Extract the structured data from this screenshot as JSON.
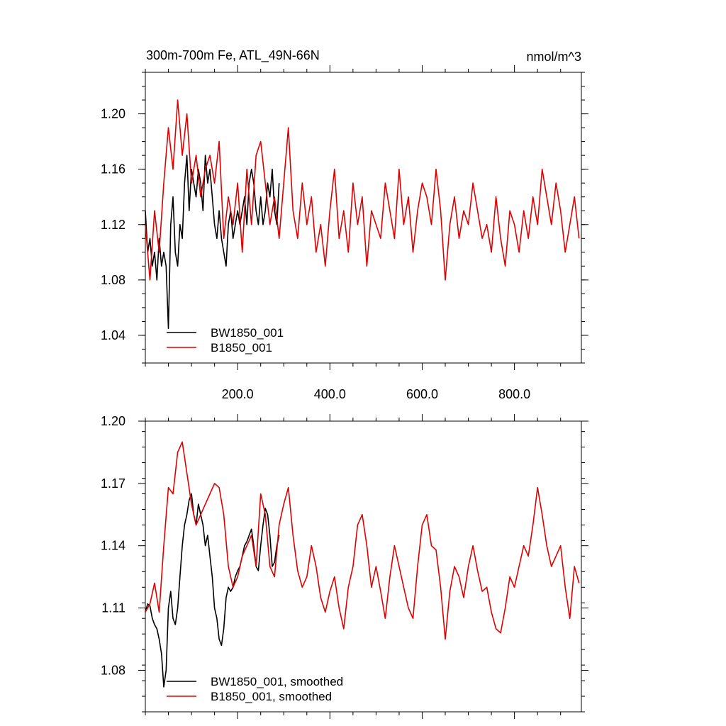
{
  "chart_data": [
    {
      "type": "line",
      "title": "300m-700m Fe, ATL_49N-66N",
      "units": "nmol/m^3",
      "xlim": [
        0,
        945
      ],
      "ylim": [
        1.02,
        1.23
      ],
      "xticks": [
        200,
        400,
        600,
        800
      ],
      "xtick_labels": [
        "200.0",
        "400.0",
        "600.0",
        "800.0"
      ],
      "yticks": [
        1.04,
        1.08,
        1.12,
        1.16,
        1.2
      ],
      "ytick_labels": [
        "1.04",
        "1.08",
        "1.12",
        "1.16",
        "1.20"
      ],
      "legend_position": "bottom-left",
      "series": [
        {
          "name": "BW1850_001",
          "color": "#000000",
          "x": [
            0,
            5,
            10,
            15,
            20,
            25,
            30,
            35,
            40,
            45,
            50,
            55,
            60,
            65,
            70,
            75,
            80,
            85,
            90,
            95,
            100,
            105,
            110,
            115,
            120,
            125,
            130,
            135,
            140,
            145,
            150,
            155,
            160,
            165,
            170,
            175,
            180,
            185,
            190,
            195,
            200,
            205,
            210,
            215,
            220,
            225,
            230,
            235,
            240,
            245,
            250,
            255,
            260,
            265,
            270,
            275,
            280,
            285,
            290
          ],
          "y": [
            1.13,
            1.1,
            1.11,
            1.09,
            1.1,
            1.08,
            1.11,
            1.09,
            1.1,
            1.09,
            1.045,
            1.12,
            1.14,
            1.1,
            1.09,
            1.12,
            1.11,
            1.15,
            1.17,
            1.13,
            1.16,
            1.15,
            1.14,
            1.16,
            1.15,
            1.13,
            1.17,
            1.15,
            1.16,
            1.14,
            1.12,
            1.11,
            1.13,
            1.11,
            1.1,
            1.09,
            1.12,
            1.13,
            1.11,
            1.12,
            1.13,
            1.12,
            1.13,
            1.14,
            1.12,
            1.15,
            1.16,
            1.15,
            1.13,
            1.12,
            1.14,
            1.12,
            1.13,
            1.15,
            1.14,
            1.16,
            1.13,
            1.12,
            1.15
          ]
        },
        {
          "name": "B1850_001",
          "color": "#e00000",
          "x": [
            0,
            10,
            20,
            30,
            40,
            50,
            60,
            70,
            80,
            90,
            100,
            110,
            120,
            130,
            140,
            150,
            160,
            170,
            180,
            190,
            200,
            210,
            220,
            230,
            240,
            250,
            260,
            270,
            280,
            290,
            300,
            310,
            320,
            330,
            340,
            350,
            360,
            370,
            380,
            390,
            400,
            410,
            420,
            430,
            440,
            450,
            460,
            470,
            480,
            490,
            500,
            510,
            520,
            530,
            540,
            550,
            560,
            570,
            580,
            590,
            600,
            610,
            620,
            630,
            640,
            650,
            660,
            670,
            680,
            690,
            700,
            710,
            720,
            730,
            740,
            750,
            760,
            770,
            780,
            790,
            800,
            810,
            820,
            830,
            840,
            850,
            860,
            870,
            880,
            890,
            900,
            910,
            920,
            930,
            940
          ],
          "y": [
            1.12,
            1.08,
            1.13,
            1.1,
            1.15,
            1.19,
            1.16,
            1.21,
            1.17,
            1.2,
            1.15,
            1.17,
            1.14,
            1.16,
            1.17,
            1.15,
            1.18,
            1.11,
            1.14,
            1.12,
            1.15,
            1.1,
            1.16,
            1.12,
            1.17,
            1.18,
            1.15,
            1.12,
            1.14,
            1.11,
            1.15,
            1.19,
            1.13,
            1.11,
            1.15,
            1.12,
            1.14,
            1.1,
            1.12,
            1.09,
            1.13,
            1.16,
            1.11,
            1.13,
            1.1,
            1.15,
            1.12,
            1.14,
            1.09,
            1.13,
            1.12,
            1.11,
            1.15,
            1.13,
            1.11,
            1.16,
            1.12,
            1.14,
            1.1,
            1.13,
            1.15,
            1.14,
            1.12,
            1.16,
            1.13,
            1.08,
            1.12,
            1.14,
            1.11,
            1.13,
            1.12,
            1.15,
            1.13,
            1.11,
            1.12,
            1.1,
            1.14,
            1.11,
            1.09,
            1.13,
            1.12,
            1.1,
            1.13,
            1.11,
            1.14,
            1.12,
            1.16,
            1.14,
            1.12,
            1.15,
            1.13,
            1.1,
            1.12,
            1.14,
            1.11
          ]
        }
      ]
    },
    {
      "type": "line",
      "xlim": [
        0,
        945
      ],
      "ylim": [
        1.06,
        1.2
      ],
      "yticks": [
        1.08,
        1.11,
        1.14,
        1.17,
        1.2
      ],
      "ytick_labels": [
        "1.08",
        "1.11",
        "1.14",
        "1.17",
        "1.20"
      ],
      "legend_position": "bottom-left",
      "series": [
        {
          "name": "BW1850_001, smoothed",
          "color": "#000000",
          "x": [
            0,
            5,
            10,
            15,
            20,
            25,
            30,
            35,
            40,
            45,
            50,
            55,
            60,
            65,
            70,
            75,
            80,
            85,
            90,
            95,
            100,
            105,
            110,
            115,
            120,
            125,
            130,
            135,
            140,
            145,
            150,
            155,
            160,
            165,
            170,
            175,
            180,
            185,
            190,
            195,
            200,
            205,
            210,
            215,
            220,
            225,
            230,
            235,
            240,
            245,
            250,
            255,
            260,
            265,
            270,
            275,
            280,
            285,
            290
          ],
          "y": [
            1.108,
            1.112,
            1.111,
            1.105,
            1.102,
            1.1,
            1.095,
            1.088,
            1.072,
            1.08,
            1.11,
            1.118,
            1.105,
            1.102,
            1.11,
            1.125,
            1.14,
            1.15,
            1.155,
            1.162,
            1.165,
            1.155,
            1.15,
            1.16,
            1.155,
            1.15,
            1.14,
            1.145,
            1.135,
            1.125,
            1.11,
            1.105,
            1.095,
            1.092,
            1.1,
            1.115,
            1.12,
            1.118,
            1.12,
            1.125,
            1.128,
            1.13,
            1.135,
            1.14,
            1.142,
            1.145,
            1.148,
            1.14,
            1.13,
            1.128,
            1.14,
            1.15,
            1.158,
            1.155,
            1.145,
            1.13,
            1.132,
            1.14,
            1.145
          ]
        },
        {
          "name": "B1850_001, smoothed",
          "color": "#e00000",
          "x": [
            0,
            10,
            20,
            30,
            40,
            50,
            60,
            70,
            80,
            90,
            100,
            110,
            120,
            130,
            140,
            150,
            160,
            170,
            180,
            190,
            200,
            210,
            220,
            230,
            240,
            250,
            260,
            270,
            280,
            290,
            300,
            310,
            320,
            330,
            340,
            350,
            360,
            370,
            380,
            390,
            400,
            410,
            420,
            430,
            440,
            450,
            460,
            470,
            480,
            490,
            500,
            510,
            520,
            530,
            540,
            550,
            560,
            570,
            580,
            590,
            600,
            610,
            620,
            630,
            640,
            650,
            660,
            670,
            680,
            690,
            700,
            710,
            720,
            730,
            740,
            750,
            760,
            770,
            780,
            790,
            800,
            810,
            820,
            830,
            840,
            850,
            860,
            870,
            880,
            890,
            900,
            910,
            920,
            930,
            940
          ],
          "y": [
            1.108,
            1.112,
            1.122,
            1.108,
            1.14,
            1.168,
            1.165,
            1.185,
            1.19,
            1.175,
            1.16,
            1.15,
            1.155,
            1.16,
            1.165,
            1.17,
            1.168,
            1.155,
            1.13,
            1.12,
            1.125,
            1.135,
            1.14,
            1.145,
            1.13,
            1.165,
            1.155,
            1.13,
            1.125,
            1.15,
            1.16,
            1.168,
            1.145,
            1.128,
            1.12,
            1.125,
            1.14,
            1.13,
            1.115,
            1.108,
            1.118,
            1.125,
            1.11,
            1.1,
            1.12,
            1.13,
            1.15,
            1.155,
            1.14,
            1.12,
            1.13,
            1.118,
            1.105,
            1.125,
            1.14,
            1.13,
            1.12,
            1.11,
            1.105,
            1.13,
            1.15,
            1.155,
            1.14,
            1.138,
            1.12,
            1.095,
            1.118,
            1.13,
            1.125,
            1.115,
            1.13,
            1.14,
            1.128,
            1.118,
            1.12,
            1.108,
            1.1,
            1.098,
            1.11,
            1.125,
            1.12,
            1.13,
            1.14,
            1.135,
            1.15,
            1.168,
            1.155,
            1.14,
            1.13,
            1.135,
            1.14,
            1.12,
            1.105,
            1.13,
            1.122
          ]
        }
      ]
    }
  ]
}
